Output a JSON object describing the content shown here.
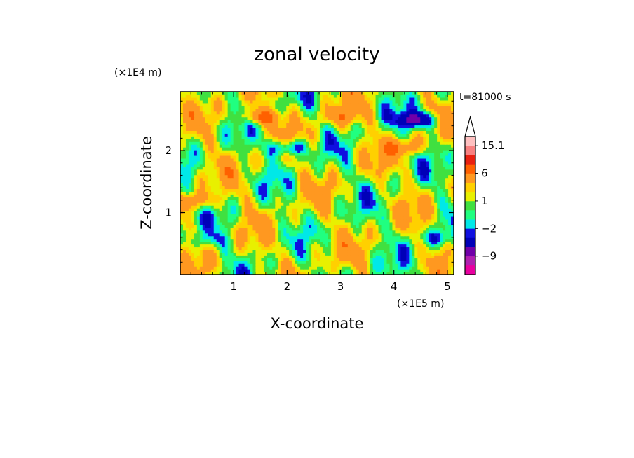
{
  "chart_data": {
    "type": "heatmap",
    "title": "zonal velocity",
    "xlabel": "X-coordinate",
    "ylabel": "Z-coordinate",
    "x_scale_label": "(×1E5 m)",
    "y_scale_label": "(×1E4 m)",
    "time_label": "t=81000 s",
    "xlim": [
      0,
      5.12
    ],
    "ylim": [
      0,
      2.95
    ],
    "x_ticks": [
      1,
      2,
      3,
      4,
      5
    ],
    "y_ticks": [
      1,
      2
    ],
    "colorbar": {
      "levels": [
        -15,
        -12,
        -9,
        -6,
        -3,
        -2,
        -1,
        0,
        1,
        2,
        3,
        6,
        9,
        12,
        15.1
      ],
      "colors": [
        "#e800a0",
        "#b020b0",
        "#7000a8",
        "#0000b8",
        "#1010e0",
        "#00e8e8",
        "#20ff80",
        "#40e040",
        "#e8f000",
        "#ffd000",
        "#ff9820",
        "#ff6000",
        "#e82010",
        "#f88080",
        "#ffc0c0"
      ],
      "labels": [
        "15.1",
        "6",
        "1",
        "−2",
        "−9"
      ],
      "label_values": [
        15.1,
        6,
        1,
        -2,
        -9
      ],
      "extend_top": true
    },
    "features": [
      {
        "x": 1.5,
        "z": 2.55,
        "u": 6
      },
      {
        "x": 2.0,
        "z": 2.05,
        "u": -6
      },
      {
        "x": 4.45,
        "z": 2.5,
        "u": -8
      },
      {
        "x": 0.3,
        "z": 1.2,
        "u": 4
      },
      {
        "x": 3.0,
        "z": 2.55,
        "u": 3
      },
      {
        "x": 4.2,
        "z": 2.05,
        "u": 4
      },
      {
        "x": 2.5,
        "z": 0.5,
        "u": 0.5
      },
      {
        "x": 0.6,
        "z": 0.55,
        "u": -2
      },
      {
        "x": 3.1,
        "z": 0.3,
        "u": 0.5
      },
      {
        "x": 4.8,
        "z": 0.6,
        "u": -3
      }
    ]
  }
}
